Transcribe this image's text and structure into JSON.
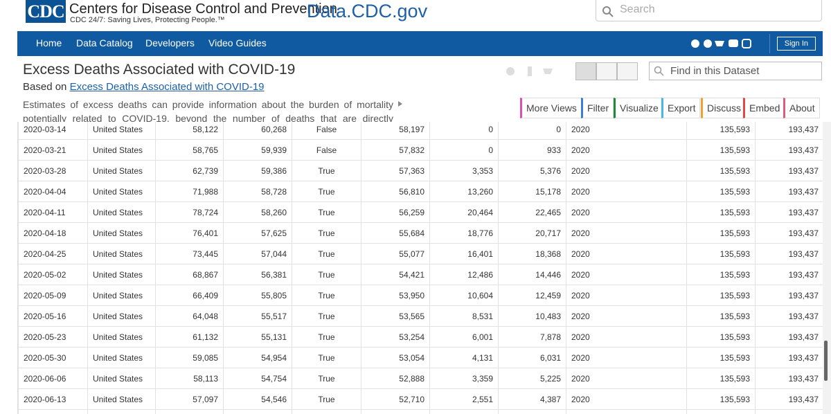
{
  "header": {
    "logo": "CDC",
    "org_name": "Centers for Disease Control and Prevention",
    "tagline": "CDC 24/7: Saving Lives, Protecting People.™",
    "site_name": "Data.CDC.gov",
    "search_placeholder": "Search"
  },
  "nav": {
    "items": [
      "Home",
      "Data Catalog",
      "Developers",
      "Video Guides"
    ],
    "sign_in": "Sign In"
  },
  "dataset": {
    "title": "Excess Deaths Associated with COVID-19",
    "based_on": "Based on",
    "based_on_link": "Excess Deaths Associated with COVID-19",
    "description": [
      "Estimates of excess deaths can provide information about the burden of mortality",
      "potentially related to COVID-19, beyond the number of deaths that are directly"
    ],
    "find_placeholder": "Find in this Dataset",
    "buttons": [
      "More Views",
      "Filter",
      "Visualize",
      "Export",
      "Discuss",
      "Embed",
      "About"
    ]
  },
  "table": {
    "rows": [
      [
        "2020-03-14",
        "United States",
        "58,122",
        "60,268",
        "False",
        "58,197",
        "0",
        "0",
        "2020",
        "135,593",
        "193,437"
      ],
      [
        "2020-03-21",
        "United States",
        "58,765",
        "59,939",
        "False",
        "57,832",
        "0",
        "933",
        "2020",
        "135,593",
        "193,437"
      ],
      [
        "2020-03-28",
        "United States",
        "62,739",
        "59,386",
        "True",
        "57,363",
        "3,353",
        "5,376",
        "2020",
        "135,593",
        "193,437"
      ],
      [
        "2020-04-04",
        "United States",
        "71,988",
        "58,728",
        "True",
        "56,810",
        "13,260",
        "15,178",
        "2020",
        "135,593",
        "193,437"
      ],
      [
        "2020-04-11",
        "United States",
        "78,724",
        "58,260",
        "True",
        "56,259",
        "20,464",
        "22,465",
        "2020",
        "135,593",
        "193,437"
      ],
      [
        "2020-04-18",
        "United States",
        "76,401",
        "57,625",
        "True",
        "55,684",
        "18,776",
        "20,717",
        "2020",
        "135,593",
        "193,437"
      ],
      [
        "2020-04-25",
        "United States",
        "73,445",
        "57,044",
        "True",
        "55,077",
        "16,401",
        "18,368",
        "2020",
        "135,593",
        "193,437"
      ],
      [
        "2020-05-02",
        "United States",
        "68,867",
        "56,381",
        "True",
        "54,421",
        "12,486",
        "14,446",
        "2020",
        "135,593",
        "193,437"
      ],
      [
        "2020-05-09",
        "United States",
        "66,409",
        "55,805",
        "True",
        "53,950",
        "10,604",
        "12,459",
        "2020",
        "135,593",
        "193,437"
      ],
      [
        "2020-05-16",
        "United States",
        "64,048",
        "55,517",
        "True",
        "53,565",
        "8,531",
        "10,483",
        "2020",
        "135,593",
        "193,437"
      ],
      [
        "2020-05-23",
        "United States",
        "61,132",
        "55,131",
        "True",
        "53,254",
        "6,001",
        "7,878",
        "2020",
        "135,593",
        "193,437"
      ],
      [
        "2020-05-30",
        "United States",
        "59,085",
        "54,954",
        "True",
        "53,054",
        "4,131",
        "6,031",
        "2020",
        "135,593",
        "193,437"
      ],
      [
        "2020-06-06",
        "United States",
        "58,113",
        "54,754",
        "True",
        "52,888",
        "3,359",
        "5,225",
        "2020",
        "135,593",
        "193,437"
      ],
      [
        "2020-06-13",
        "United States",
        "57,097",
        "54,546",
        "True",
        "52,710",
        "2,551",
        "4,387",
        "2020",
        "135,593",
        "193,437"
      ]
    ]
  }
}
